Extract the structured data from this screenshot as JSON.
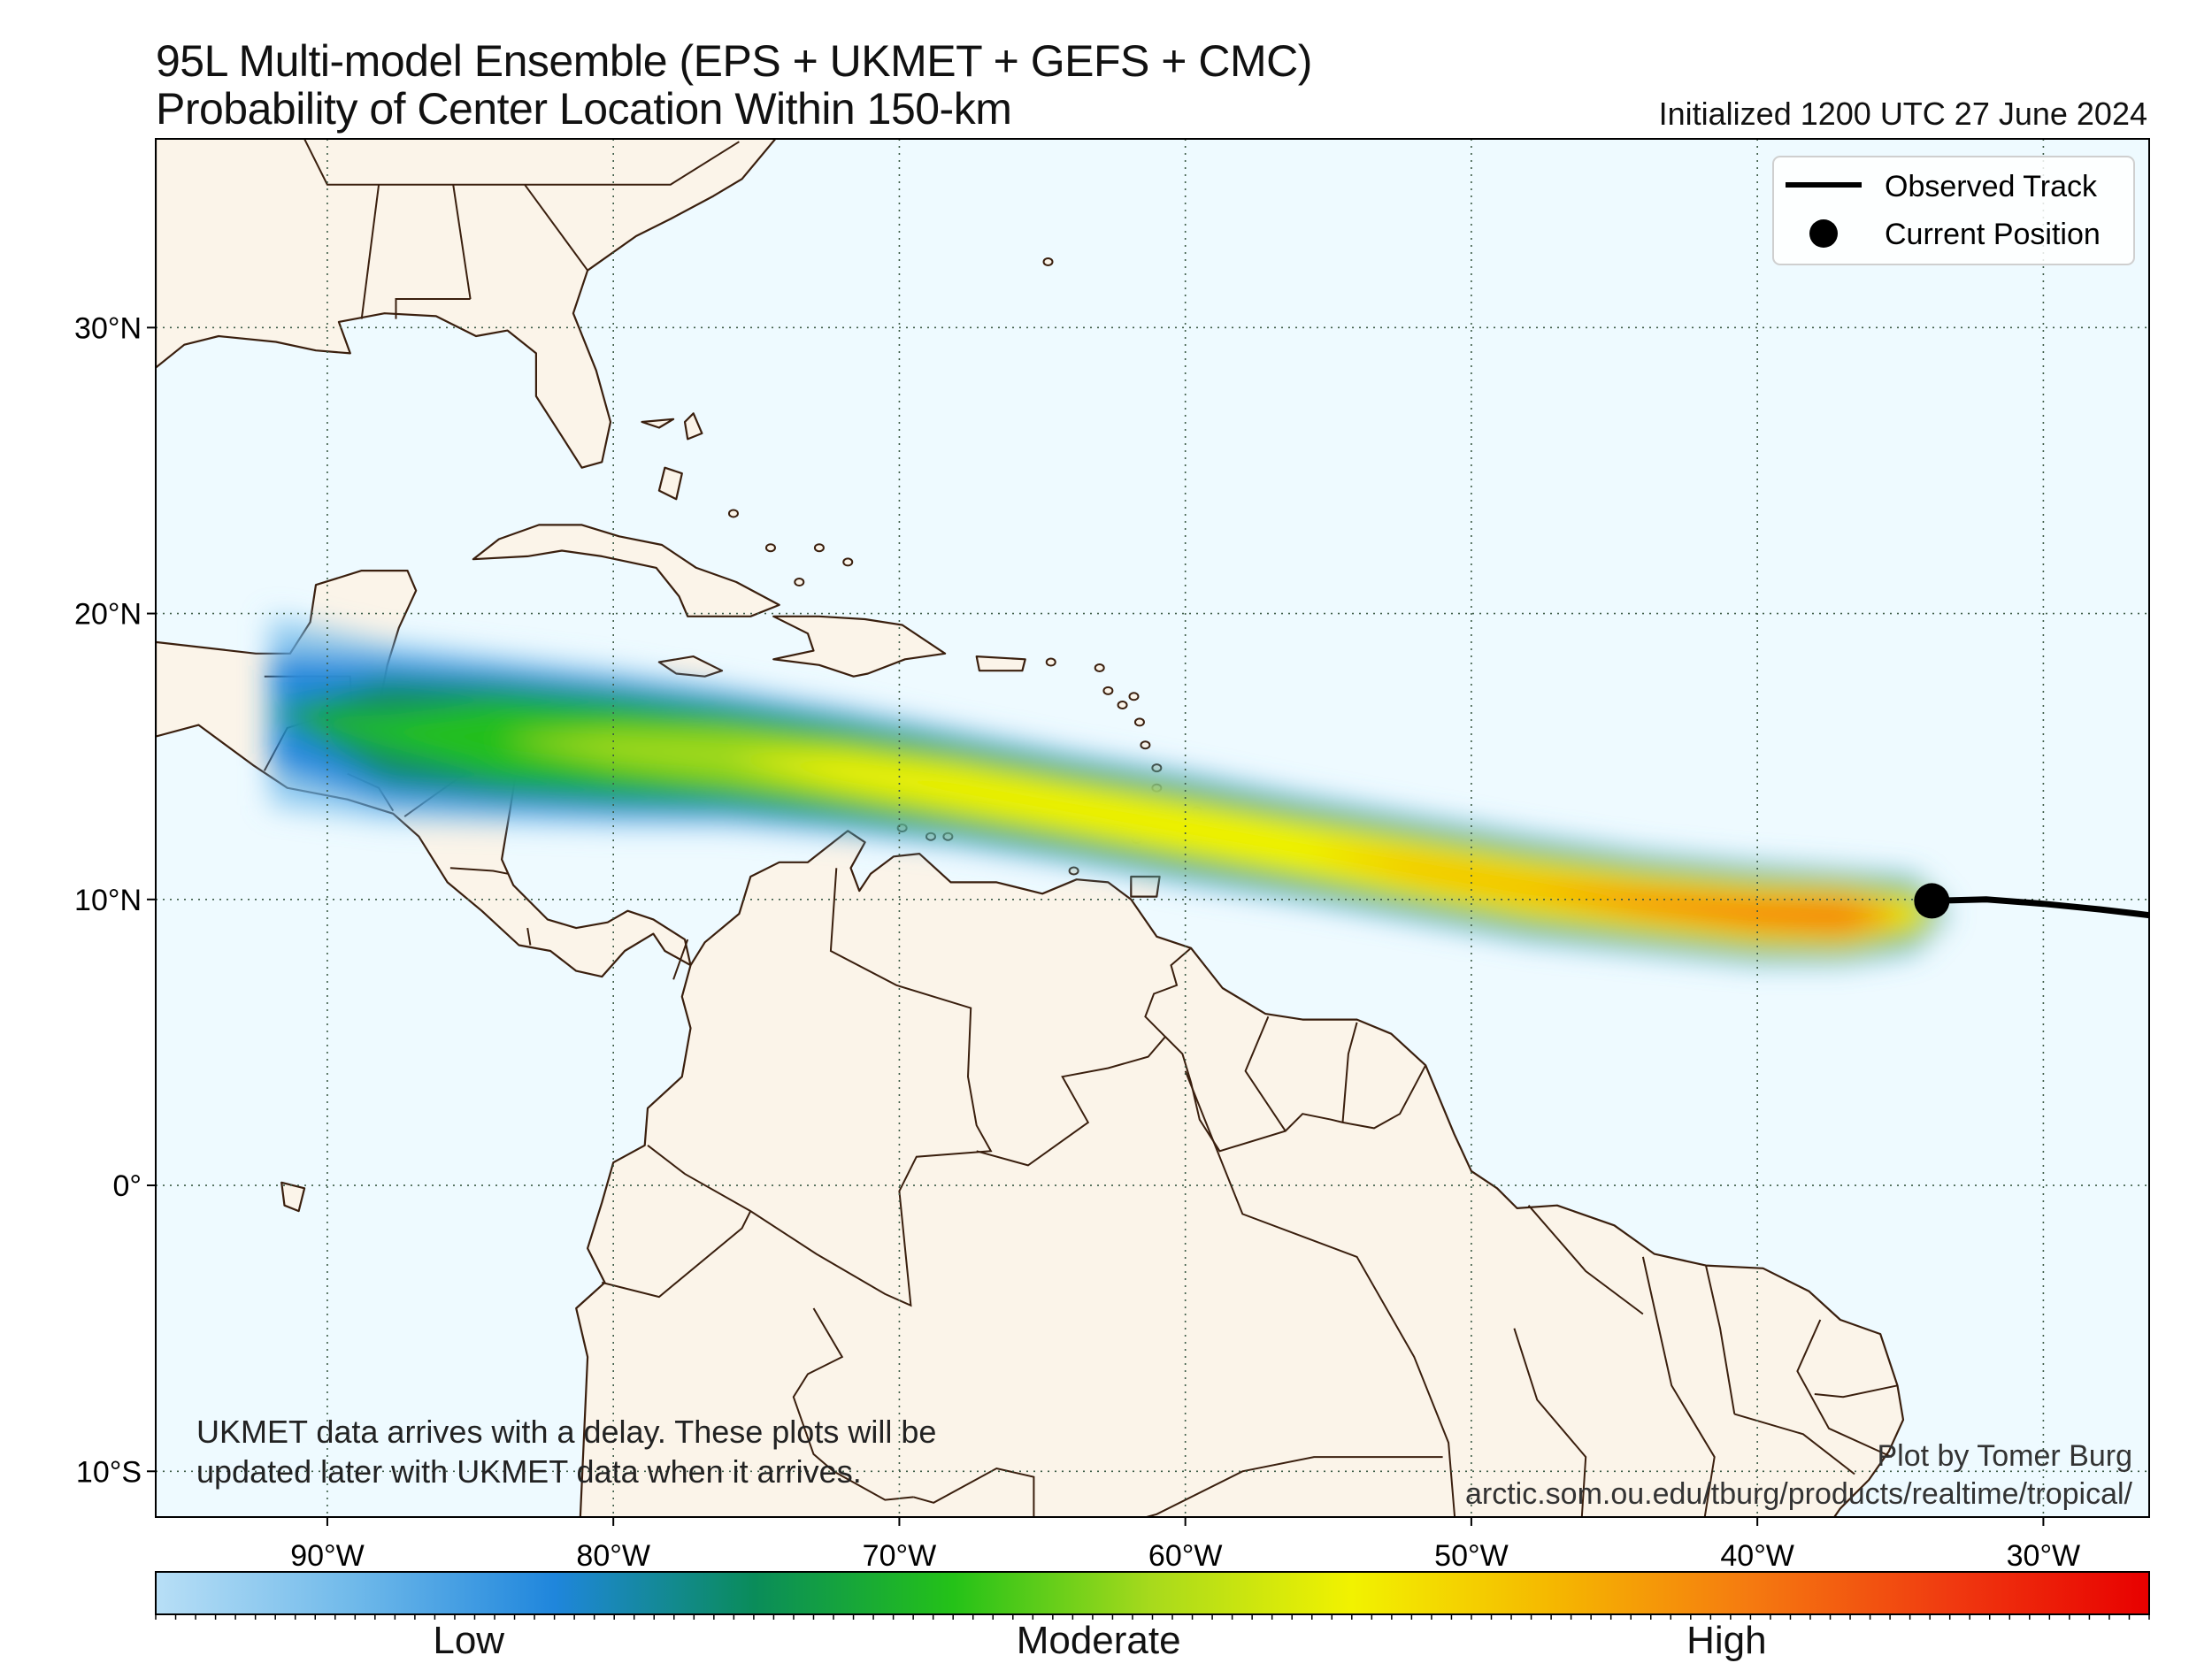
{
  "title": {
    "line1": "95L Multi-model Ensemble (EPS + UKMET + GEFS + CMC)",
    "line2": "Probability of Center Location Within 150-km",
    "initialized": "Initialized 1200 UTC 27 June 2024"
  },
  "map": {
    "lon_range": [
      -96,
      -26.3
    ],
    "lat_range": [
      -11.6,
      36.6
    ],
    "lon_ticks": [
      {
        "value": -90,
        "label": "90°W"
      },
      {
        "value": -80,
        "label": "80°W"
      },
      {
        "value": -70,
        "label": "70°W"
      },
      {
        "value": -60,
        "label": "60°W"
      },
      {
        "value": -50,
        "label": "50°W"
      },
      {
        "value": -40,
        "label": "40°W"
      },
      {
        "value": -30,
        "label": "30°W"
      }
    ],
    "lat_ticks": [
      {
        "value": 30,
        "label": "30°N"
      },
      {
        "value": 20,
        "label": "20°N"
      },
      {
        "value": 10,
        "label": "10°N"
      },
      {
        "value": 0,
        "label": "0°"
      },
      {
        "value": -10,
        "label": "10°S"
      }
    ],
    "grid": "dotted",
    "ocean_color": "#eefaff",
    "land_color": "#fbf4e9",
    "coast_color": "#3a1f0e"
  },
  "legend": {
    "placement": "top-right",
    "items": [
      {
        "label": "Observed Track",
        "symbol": "line"
      },
      {
        "label": "Current Position",
        "symbol": "dot"
      }
    ]
  },
  "track": {
    "observed": [
      [
        -33.9,
        9.95
      ],
      [
        -32,
        10.0
      ],
      [
        -30,
        9.85
      ],
      [
        -28,
        9.65
      ],
      [
        -26.3,
        9.45
      ]
    ],
    "current_position": [
      -33.9,
      9.95
    ]
  },
  "probability_swath": {
    "centerline": [
      [
        -92,
        16.6
      ],
      [
        -88,
        15.9
      ],
      [
        -84,
        15.6
      ],
      [
        -80,
        15.3
      ],
      [
        -76,
        15.0
      ],
      [
        -72,
        14.5
      ],
      [
        -68,
        13.9
      ],
      [
        -64,
        13.2
      ],
      [
        -60,
        12.5
      ],
      [
        -56,
        11.8
      ],
      [
        -52,
        11.1
      ],
      [
        -48,
        10.4
      ],
      [
        -44,
        9.9
      ],
      [
        -40,
        9.5
      ],
      [
        -37,
        9.4
      ],
      [
        -34.5,
        9.5
      ]
    ],
    "relative_peak": [
      [
        -92,
        0.18
      ],
      [
        -88,
        0.33
      ],
      [
        -84,
        0.4
      ],
      [
        -80,
        0.44
      ],
      [
        -76,
        0.48
      ],
      [
        -72,
        0.53
      ],
      [
        -68,
        0.58
      ],
      [
        -64,
        0.6
      ],
      [
        -60,
        0.62
      ],
      [
        -56,
        0.65
      ],
      [
        -52,
        0.69
      ],
      [
        -48,
        0.72
      ],
      [
        -44,
        0.75
      ],
      [
        -40,
        0.79
      ],
      [
        -37,
        0.83
      ],
      [
        -34.5,
        0.6
      ]
    ]
  },
  "colorbar": {
    "colors": [
      "#b8dff6",
      "#6fb9ea",
      "#1f86dc",
      "#0a8c5a",
      "#24c218",
      "#a8da1c",
      "#f2f200",
      "#f5b800",
      "#f57a10",
      "#f03a10",
      "#e80000"
    ],
    "labels": [
      {
        "value": 0.157,
        "text": "Low"
      },
      {
        "value": 0.473,
        "text": "Moderate"
      },
      {
        "value": 0.788,
        "text": "High"
      }
    ]
  },
  "notes": {
    "delay_line1": "UKMET data arrives with a delay. These plots will be",
    "delay_line2": "updated later with UKMET data when it arrives.",
    "credit": "Plot by Tomer Burg",
    "url": "arctic.som.ou.edu/tburg/products/realtime/tropical/"
  }
}
